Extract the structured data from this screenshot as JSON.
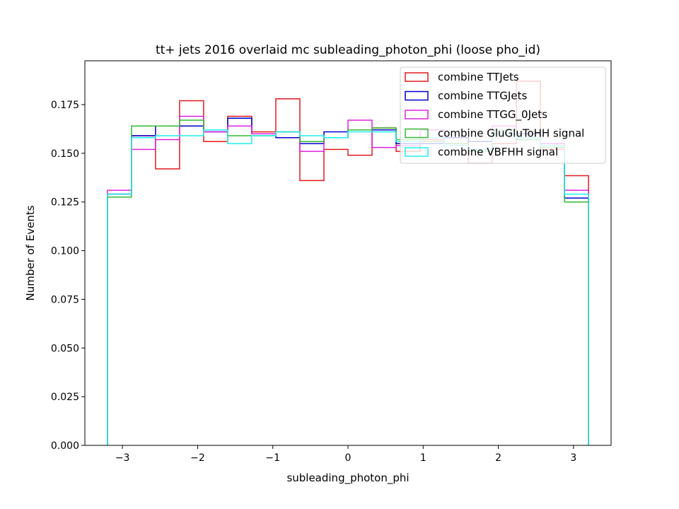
{
  "chart_data": {
    "type": "histogram-step",
    "title": "tt+ jets 2016 overlaid mc subleading_photon_phi (loose pho_id)",
    "xlabel": "subleading_photon_phi",
    "ylabel": "Number of Events",
    "xlim": [
      -3.5,
      3.5
    ],
    "ylim": [
      0.0,
      0.1975
    ],
    "xticks": [
      -3,
      -2,
      -1,
      0,
      1,
      2,
      3
    ],
    "yticks": [
      0.0,
      0.025,
      0.05,
      0.075,
      0.1,
      0.125,
      0.15,
      0.175
    ],
    "ytick_labels": [
      "0.000",
      "0.025",
      "0.050",
      "0.075",
      "0.100",
      "0.125",
      "0.150",
      "0.175"
    ],
    "xtick_labels": [
      "−3",
      "−2",
      "−1",
      "0",
      "1",
      "2",
      "3"
    ],
    "bins": {
      "start": -3.2,
      "end": 3.2,
      "count": 20
    },
    "legend_position": "upper-right",
    "series": [
      {
        "name": "combine TTJets",
        "color": "#e41a1c",
        "values": [
          0.129,
          0.159,
          0.142,
          0.177,
          0.156,
          0.169,
          0.161,
          0.178,
          0.136,
          0.152,
          0.149,
          0.163,
          0.151,
          0.157,
          0.158,
          0.145,
          0.155,
          0.187,
          0.152,
          0.1385
        ]
      },
      {
        "name": "combine TTGJets",
        "color": "#0000cc",
        "values": [
          0.129,
          0.159,
          0.164,
          0.164,
          0.161,
          0.168,
          0.16,
          0.158,
          0.155,
          0.161,
          0.162,
          0.162,
          0.155,
          0.155,
          0.158,
          0.156,
          0.16,
          0.16,
          0.155,
          0.127
        ]
      },
      {
        "name": "combine TTGG_0Jets",
        "color": "#dd22dd",
        "values": [
          0.131,
          0.152,
          0.157,
          0.169,
          0.161,
          0.164,
          0.16,
          0.161,
          0.151,
          0.158,
          0.167,
          0.153,
          0.154,
          0.162,
          0.155,
          0.152,
          0.164,
          0.157,
          0.155,
          0.131
        ]
      },
      {
        "name": "combine GluGluToHH signal",
        "color": "#33bb33",
        "values": [
          0.1275,
          0.164,
          0.164,
          0.167,
          0.162,
          0.159,
          0.159,
          0.161,
          0.156,
          0.158,
          0.162,
          0.163,
          0.157,
          0.156,
          0.155,
          0.151,
          0.162,
          0.157,
          0.153,
          0.125
        ]
      },
      {
        "name": "combine VBFHH signal",
        "color": "#22eeee",
        "values": [
          0.129,
          0.158,
          0.159,
          0.159,
          0.162,
          0.155,
          0.159,
          0.161,
          0.159,
          0.158,
          0.161,
          0.161,
          0.156,
          0.158,
          0.154,
          0.152,
          0.16,
          0.158,
          0.154,
          0.129
        ]
      }
    ]
  }
}
